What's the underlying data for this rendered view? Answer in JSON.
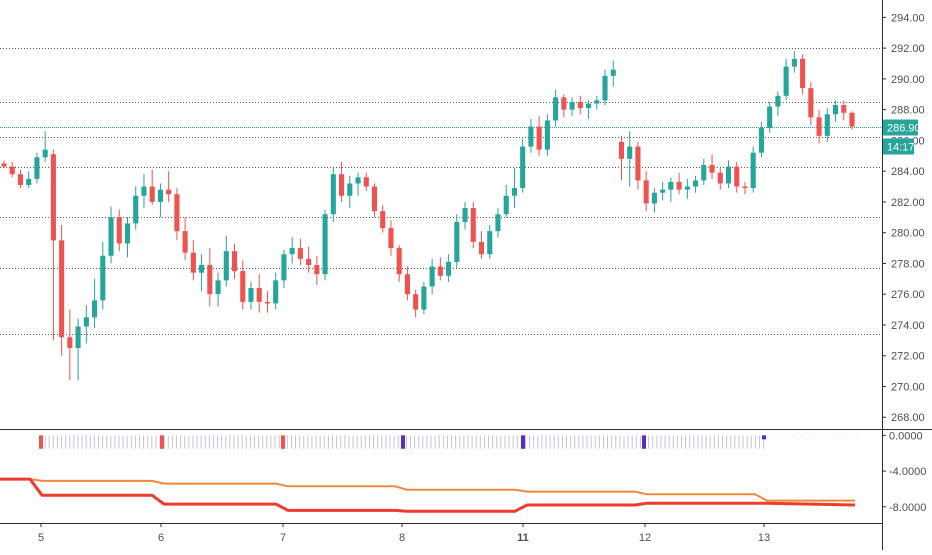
{
  "chart_data": {
    "type": "candlestick",
    "main_pane": {
      "y_ticks": [
        "268.00",
        "270.00",
        "272.00",
        "274.00",
        "276.00",
        "278.00",
        "280.00",
        "282.00",
        "284.00",
        "286.00",
        "288.00",
        "290.00",
        "292.00",
        "294.00"
      ],
      "ylim": [
        267.3,
        295.0
      ],
      "horizontal_levels": [
        292.0,
        288.5,
        286.2,
        284.3,
        281.0,
        277.7,
        273.4
      ],
      "current_price": "286.90",
      "current_price_value": 286.9,
      "countdown": "14:17",
      "candles": [
        [
          284.5,
          284.7,
          284.2,
          284.3
        ],
        [
          284.3,
          284.6,
          283.6,
          283.8
        ],
        [
          283.8,
          284.1,
          282.9,
          283.1
        ],
        [
          283.1,
          284.0,
          282.9,
          283.5
        ],
        [
          283.5,
          285.2,
          283.2,
          284.9
        ],
        [
          284.9,
          286.6,
          284.6,
          285.4
        ],
        [
          285.1,
          285.4,
          273.0,
          279.5
        ],
        [
          279.5,
          280.5,
          272.0,
          273.2
        ],
        [
          273.2,
          275.0,
          270.4,
          272.5
        ],
        [
          272.5,
          274.4,
          270.4,
          273.9
        ],
        [
          273.9,
          275.3,
          272.8,
          274.5
        ],
        [
          274.5,
          277.0,
          273.8,
          275.6
        ],
        [
          275.6,
          279.4,
          275.0,
          278.5
        ],
        [
          278.5,
          281.7,
          278.0,
          281.0
        ],
        [
          281.0,
          281.5,
          278.8,
          279.3
        ],
        [
          279.3,
          281.0,
          278.4,
          280.6
        ],
        [
          280.6,
          283.0,
          280.2,
          282.4
        ],
        [
          282.4,
          283.8,
          281.6,
          283.0
        ],
        [
          283.0,
          284.1,
          281.8,
          282.0
        ],
        [
          282.0,
          283.2,
          281.0,
          282.8
        ],
        [
          282.8,
          284.0,
          282.0,
          282.5
        ],
        [
          282.5,
          282.9,
          279.5,
          280.1
        ],
        [
          280.1,
          281.0,
          278.2,
          278.7
        ],
        [
          278.7,
          279.5,
          276.9,
          277.4
        ],
        [
          277.4,
          278.6,
          276.2,
          277.9
        ],
        [
          277.9,
          279.0,
          275.2,
          276.0
        ],
        [
          276.0,
          277.4,
          275.2,
          276.9
        ],
        [
          276.9,
          279.8,
          276.5,
          278.8
        ],
        [
          278.8,
          279.3,
          277.0,
          277.5
        ],
        [
          277.5,
          278.2,
          275.0,
          275.5
        ],
        [
          275.5,
          276.8,
          275.0,
          276.4
        ],
        [
          276.4,
          277.3,
          274.8,
          275.5
        ],
        [
          275.5,
          276.2,
          274.8,
          275.4
        ],
        [
          275.4,
          277.4,
          275.0,
          276.9
        ],
        [
          276.9,
          278.9,
          276.4,
          278.6
        ],
        [
          278.6,
          279.7,
          278.0,
          279.0
        ],
        [
          279.0,
          279.6,
          277.9,
          278.3
        ],
        [
          278.3,
          279.1,
          277.4,
          277.9
        ],
        [
          277.9,
          278.5,
          276.6,
          277.3
        ],
        [
          277.3,
          281.5,
          276.9,
          281.2
        ],
        [
          281.2,
          284.3,
          280.7,
          283.8
        ],
        [
          283.8,
          284.6,
          282.0,
          282.4
        ],
        [
          282.4,
          283.7,
          281.6,
          283.2
        ],
        [
          283.2,
          283.9,
          282.4,
          283.6
        ],
        [
          283.6,
          283.9,
          282.7,
          283.0
        ],
        [
          283.0,
          283.2,
          281.0,
          281.4
        ],
        [
          281.4,
          281.8,
          280.0,
          280.3
        ],
        [
          280.3,
          280.8,
          278.5,
          279.0
        ],
        [
          279.0,
          279.2,
          276.8,
          277.3
        ],
        [
          277.3,
          277.8,
          275.6,
          276.0
        ],
        [
          276.0,
          276.3,
          274.5,
          275.0
        ],
        [
          275.0,
          276.8,
          274.7,
          276.5
        ],
        [
          276.5,
          278.3,
          276.0,
          277.8
        ],
        [
          277.8,
          278.4,
          276.9,
          277.2
        ],
        [
          277.2,
          278.6,
          276.8,
          278.1
        ],
        [
          278.1,
          281.2,
          277.7,
          280.7
        ],
        [
          280.7,
          282.0,
          280.2,
          281.6
        ],
        [
          281.6,
          282.0,
          279.0,
          279.4
        ],
        [
          279.4,
          280.1,
          278.3,
          278.6
        ],
        [
          278.6,
          280.5,
          278.3,
          280.1
        ],
        [
          280.1,
          281.6,
          279.7,
          281.2
        ],
        [
          281.2,
          283.1,
          281.0,
          282.4
        ],
        [
          282.4,
          284.2,
          281.6,
          282.9
        ],
        [
          282.9,
          286.1,
          282.6,
          285.6
        ],
        [
          285.6,
          287.4,
          285.2,
          286.9
        ],
        [
          286.9,
          287.6,
          285.0,
          285.4
        ],
        [
          285.4,
          287.7,
          285.0,
          287.3
        ],
        [
          287.3,
          289.3,
          286.9,
          288.8
        ],
        [
          288.8,
          289.0,
          287.5,
          288.0
        ],
        [
          288.0,
          288.8,
          287.6,
          288.5
        ],
        [
          288.5,
          288.9,
          287.7,
          288.1
        ],
        [
          288.1,
          288.6,
          287.4,
          288.4
        ],
        [
          288.4,
          288.9,
          288.0,
          288.6
        ],
        [
          288.6,
          290.6,
          288.3,
          290.2
        ],
        [
          290.2,
          291.2,
          289.5,
          290.6
        ],
        [
          285.9,
          286.3,
          283.4,
          284.8
        ],
        [
          284.8,
          286.6,
          283.0,
          285.6
        ],
        [
          285.6,
          285.9,
          282.8,
          283.4
        ],
        [
          283.4,
          284.0,
          281.4,
          281.9
        ],
        [
          281.9,
          282.9,
          281.3,
          282.6
        ],
        [
          282.6,
          283.3,
          282.1,
          282.8
        ],
        [
          282.8,
          283.6,
          282.0,
          283.3
        ],
        [
          283.3,
          283.9,
          282.5,
          282.8
        ],
        [
          282.8,
          283.5,
          282.2,
          283.0
        ],
        [
          283.0,
          283.7,
          282.6,
          283.4
        ],
        [
          283.4,
          284.8,
          283.1,
          284.4
        ],
        [
          284.4,
          285.1,
          283.5,
          283.9
        ],
        [
          283.9,
          284.2,
          282.8,
          283.2
        ],
        [
          283.2,
          284.7,
          282.9,
          284.3
        ],
        [
          284.3,
          284.6,
          282.6,
          283.0
        ],
        [
          283.0,
          283.3,
          282.5,
          282.9
        ],
        [
          282.9,
          285.6,
          282.6,
          285.2
        ],
        [
          285.2,
          287.2,
          284.9,
          286.8
        ],
        [
          286.8,
          288.5,
          286.5,
          288.2
        ],
        [
          288.2,
          289.2,
          287.6,
          288.9
        ],
        [
          288.9,
          291.3,
          288.6,
          290.8
        ],
        [
          290.8,
          291.8,
          290.4,
          291.3
        ],
        [
          291.3,
          291.6,
          289.0,
          289.4
        ],
        [
          289.4,
          289.8,
          287.0,
          287.5
        ],
        [
          287.5,
          288.0,
          285.8,
          286.3
        ],
        [
          286.3,
          288.1,
          285.9,
          287.7
        ],
        [
          287.7,
          288.6,
          287.2,
          288.3
        ],
        [
          288.3,
          288.6,
          287.3,
          287.8
        ],
        [
          287.8,
          287.9,
          286.7,
          286.9
        ]
      ]
    },
    "indicator_pane": {
      "y_ticks": [
        "0.0000",
        "-4.0000",
        "-8.0000"
      ],
      "ylim": [
        -9.7,
        0.6
      ],
      "bar_value": -1.5,
      "highlight_colors": [
        "#ef5350",
        "#ef5350",
        "#ef5350",
        "#5b2ac7",
        "#5b2ac7",
        "#5b2ac7",
        "#5b2ac7",
        "#5b2ac7"
      ],
      "orange_series": [
        [
          0,
          -4.9
        ],
        [
          30,
          -4.9
        ],
        [
          42,
          -5.1
        ],
        [
          152,
          -5.1
        ],
        [
          164,
          -5.4
        ],
        [
          276,
          -5.4
        ],
        [
          288,
          -5.7
        ],
        [
          395,
          -5.7
        ],
        [
          407,
          -6.1
        ],
        [
          515,
          -6.1
        ],
        [
          527,
          -6.3
        ],
        [
          635,
          -6.3
        ],
        [
          647,
          -6.6
        ],
        [
          755,
          -6.6
        ],
        [
          767,
          -7.3
        ],
        [
          855,
          -7.3
        ]
      ],
      "red_series": [
        [
          0,
          -4.9
        ],
        [
          30,
          -4.9
        ],
        [
          42,
          -6.7
        ],
        [
          152,
          -6.7
        ],
        [
          164,
          -7.7
        ],
        [
          276,
          -7.7
        ],
        [
          288,
          -8.4
        ],
        [
          395,
          -8.4
        ],
        [
          407,
          -8.5
        ],
        [
          515,
          -8.5
        ],
        [
          527,
          -7.8
        ],
        [
          635,
          -7.8
        ],
        [
          647,
          -7.6
        ],
        [
          755,
          -7.6
        ],
        [
          767,
          -7.6
        ],
        [
          855,
          -7.8
        ]
      ]
    },
    "x_axis": {
      "day_ticks": [
        {
          "label": "5",
          "bold": false
        },
        {
          "label": "6",
          "bold": false
        },
        {
          "label": "7",
          "bold": false
        },
        {
          "label": "8",
          "bold": false
        },
        {
          "label": "11",
          "bold": true
        },
        {
          "label": "12",
          "bold": false
        },
        {
          "label": "13",
          "bold": false
        }
      ]
    },
    "colors": {
      "up": "#26a69a",
      "down": "#ef5350",
      "level_line": "#555555",
      "current_line": "#26a69a",
      "orange_line": "#f0883e",
      "red_line": "#ef3b2c",
      "hist_bar": "#c7c3d8"
    },
    "grid": false
  }
}
